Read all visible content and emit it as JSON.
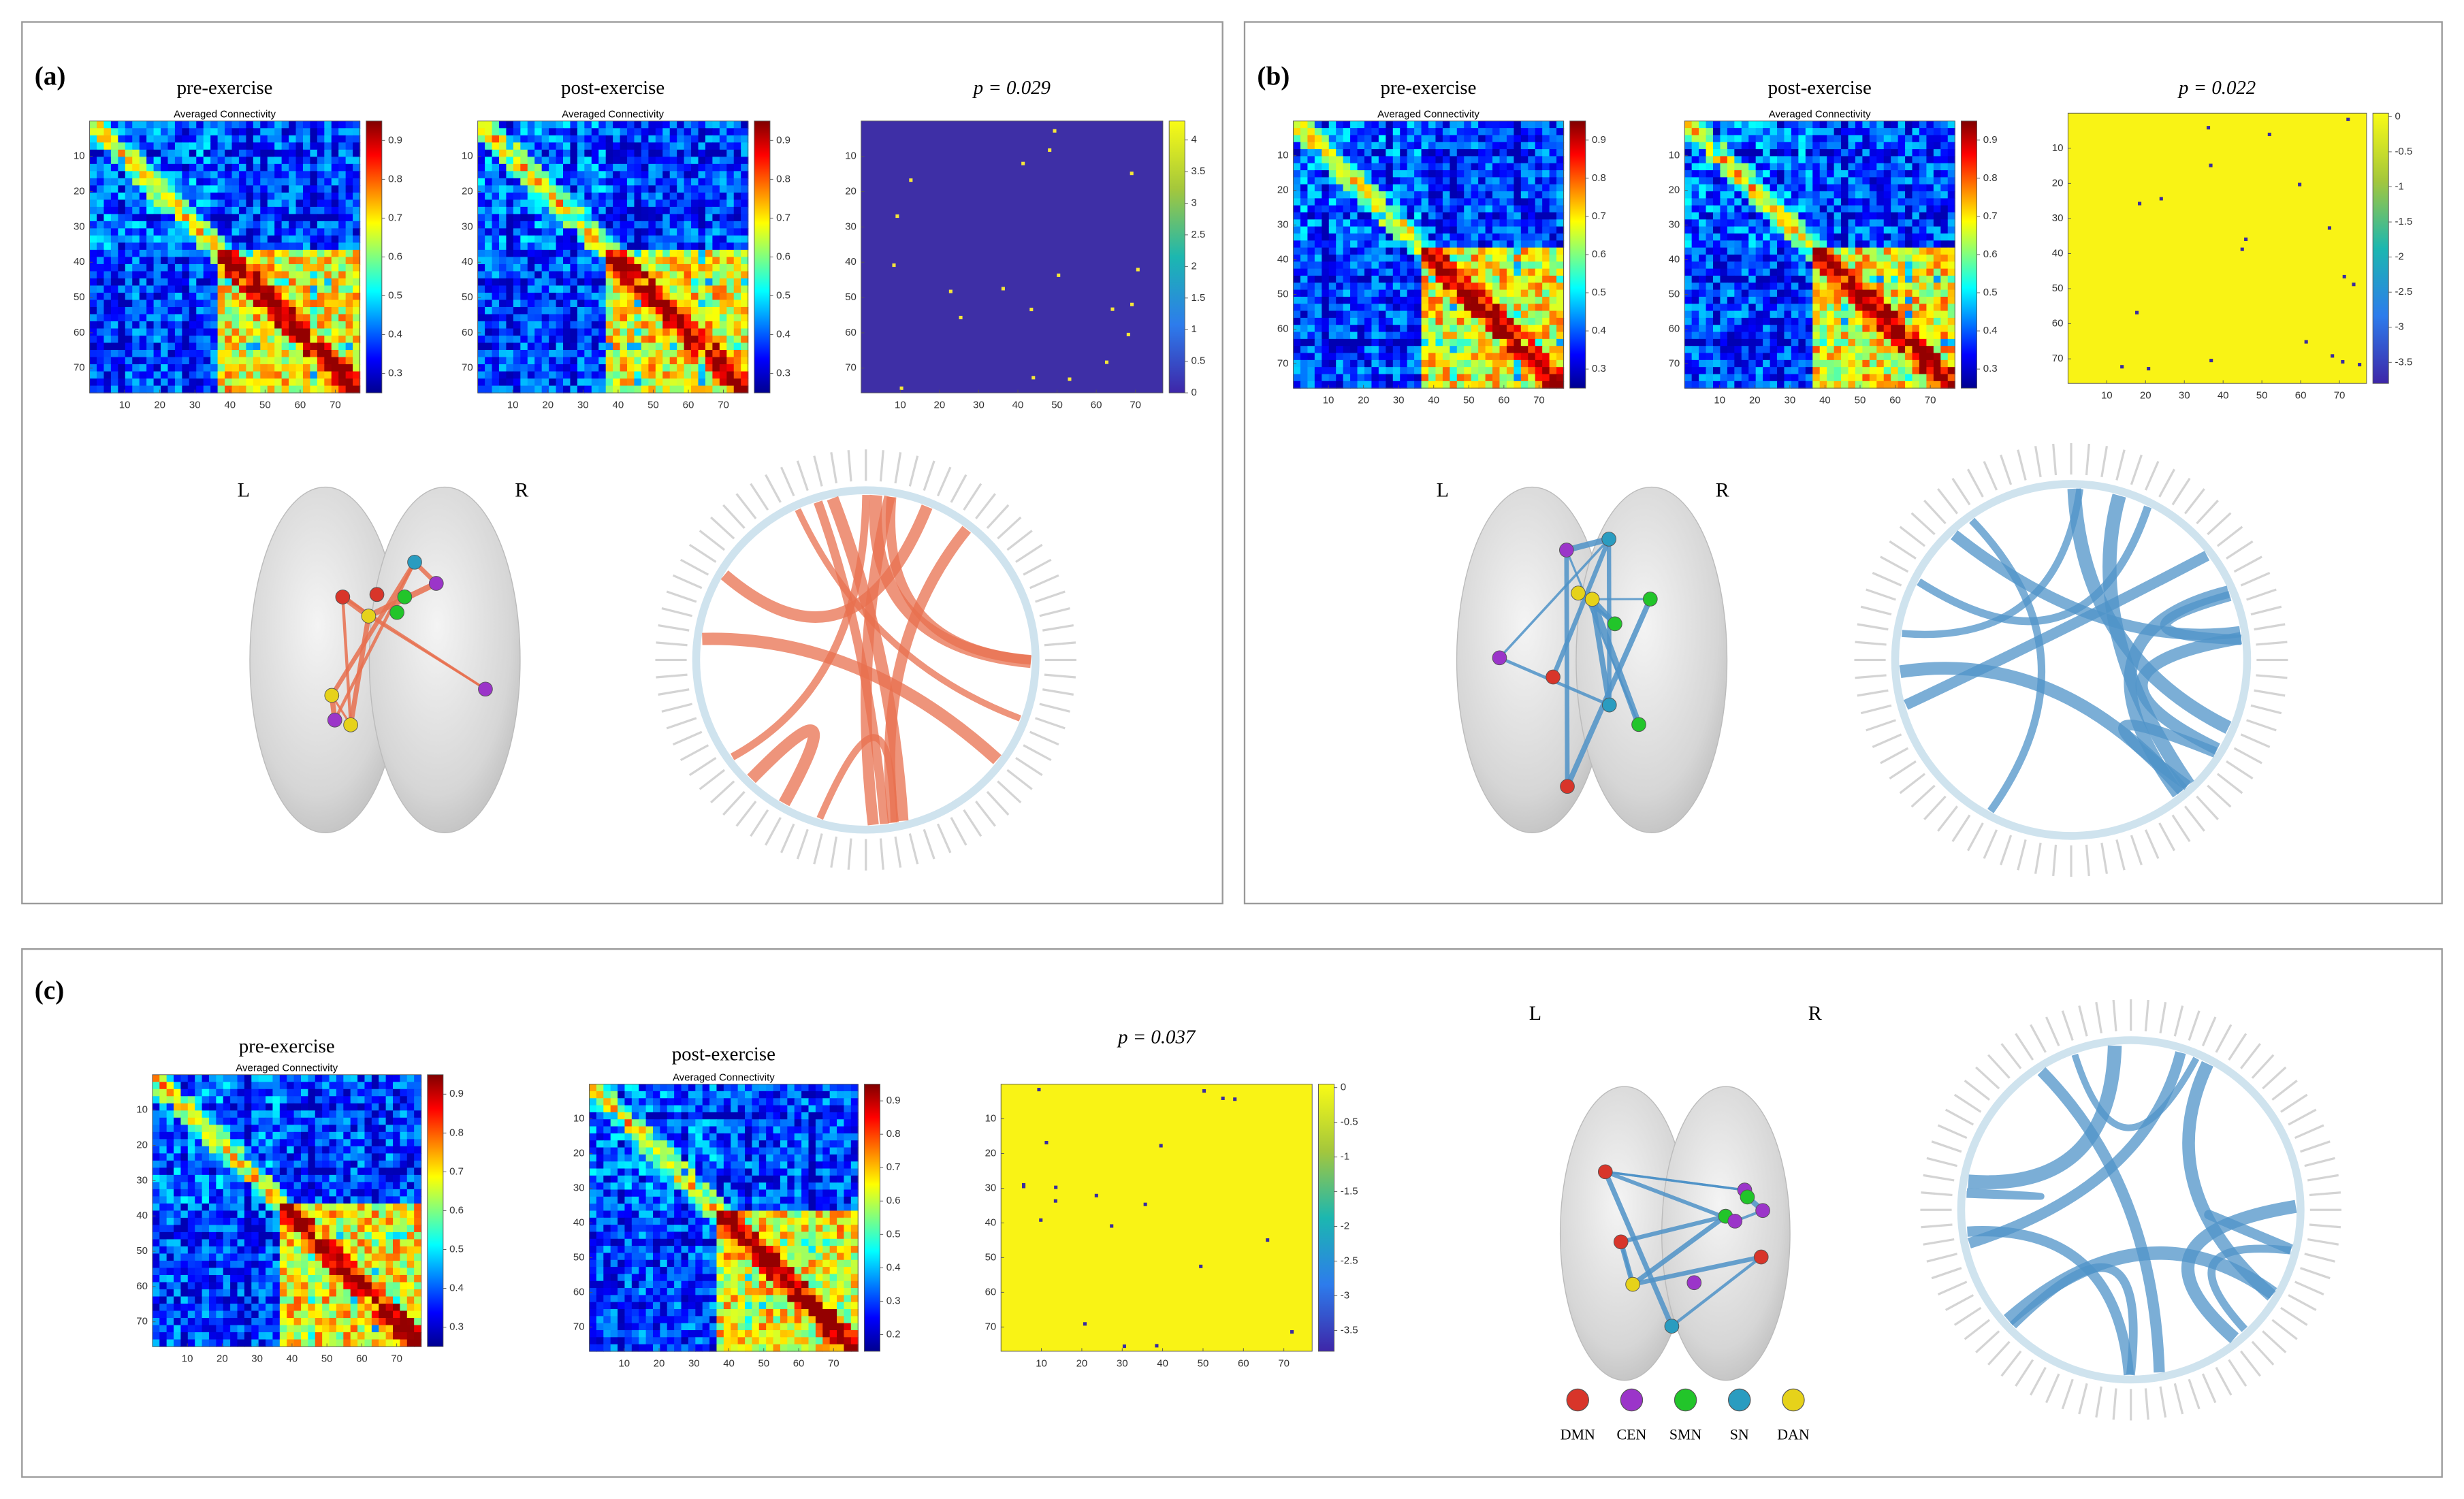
{
  "subtitle": "Averaged Connectivity",
  "matrix_axis": {
    "lim": [
      0,
      77
    ],
    "ticks": [
      10,
      20,
      30,
      40,
      50,
      60,
      70
    ]
  },
  "hemispheres": [
    "L",
    "R"
  ],
  "panels": [
    {
      "label": "(a)",
      "edge_color": "#e8704f",
      "maps": [
        {
          "title": "pre-exercise",
          "colormap": "jet",
          "colorbar": {
            "lim": [
              0.25,
              0.95
            ],
            "ticks": [
              0.3,
              0.4,
              0.5,
              0.6,
              0.7,
              0.8,
              0.9
            ]
          }
        },
        {
          "title": "post-exercise",
          "colormap": "jet",
          "colorbar": {
            "lim": [
              0.25,
              0.95
            ],
            "ticks": [
              0.3,
              0.4,
              0.5,
              0.6,
              0.7,
              0.8,
              0.9
            ]
          }
        },
        {
          "title": "p = 0.029",
          "colormap": "parula",
          "field_color": "#3e2fa6",
          "dot_color": "#f5e63a",
          "colorbar": {
            "lim": [
              0,
              4.3
            ],
            "ticks": [
              0,
              0.5,
              1,
              1.5,
              2,
              2.5,
              3,
              3.5,
              4
            ]
          }
        }
      ]
    },
    {
      "label": "(b)",
      "edge_color": "#4f93c8",
      "maps": [
        {
          "title": "pre-exercise",
          "colormap": "jet",
          "colorbar": {
            "lim": [
              0.25,
              0.95
            ],
            "ticks": [
              0.3,
              0.4,
              0.5,
              0.6,
              0.7,
              0.8,
              0.9
            ]
          }
        },
        {
          "title": "post-exercise",
          "colormap": "jet",
          "colorbar": {
            "lim": [
              0.25,
              0.95
            ],
            "ticks": [
              0.3,
              0.4,
              0.5,
              0.6,
              0.7,
              0.8,
              0.9
            ]
          }
        },
        {
          "title": "p = 0.022",
          "colormap": "parula",
          "field_color": "#f9f315",
          "dot_color": "#3a2c9e",
          "colorbar": {
            "lim": [
              -3.8,
              0.05
            ],
            "ticks": [
              -3.5,
              -3,
              -2.5,
              -2,
              -1.5,
              -1,
              -0.5,
              0
            ]
          }
        }
      ]
    },
    {
      "label": "(c)",
      "edge_color": "#4f93c8",
      "maps": [
        {
          "title": "pre-exercise",
          "colormap": "jet",
          "colorbar": {
            "lim": [
              0.25,
              0.95
            ],
            "ticks": [
              0.3,
              0.4,
              0.5,
              0.6,
              0.7,
              0.8,
              0.9
            ]
          }
        },
        {
          "title": "post-exercise",
          "colormap": "jet",
          "colorbar": {
            "lim": [
              0.15,
              0.95
            ],
            "ticks": [
              0.2,
              0.3,
              0.4,
              0.5,
              0.6,
              0.7,
              0.8,
              0.9
            ]
          }
        },
        {
          "title": "p = 0.037",
          "colormap": "parula",
          "field_color": "#f9f315",
          "dot_color": "#3a2c9e",
          "colorbar": {
            "lim": [
              -3.8,
              0.05
            ],
            "ticks": [
              -3.5,
              -3,
              -2.5,
              -2,
              -1.5,
              -1,
              -0.5,
              0
            ]
          }
        }
      ]
    }
  ],
  "legend": [
    {
      "name": "DMN",
      "color": "#d8352a"
    },
    {
      "name": "CEN",
      "color": "#9b35c9"
    },
    {
      "name": "SMN",
      "color": "#22c52a"
    },
    {
      "name": "SN",
      "color": "#2a9cc0"
    },
    {
      "name": "DAN",
      "color": "#e6d21a"
    }
  ]
}
